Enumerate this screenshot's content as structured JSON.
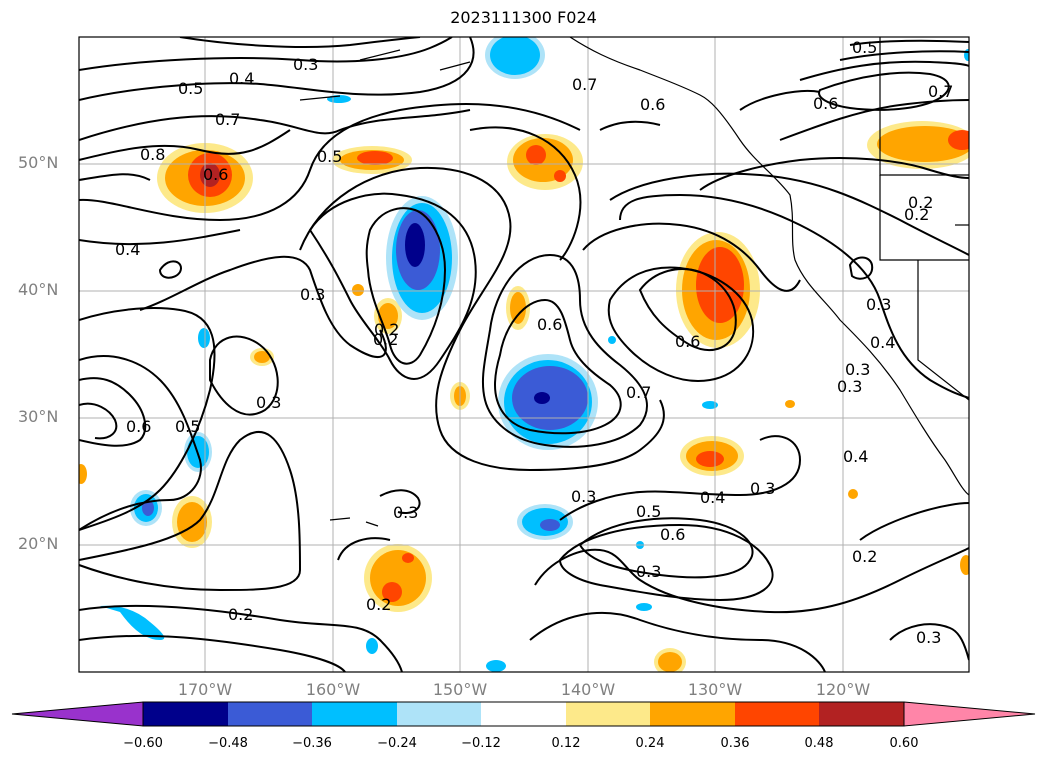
{
  "title": "2023111300 F024",
  "map": {
    "lat_labels": [
      "50°N",
      "40°N",
      "30°N",
      "20°N"
    ],
    "lon_labels": [
      "170°W",
      "160°W",
      "150°W",
      "140°W",
      "130°W",
      "120°W"
    ],
    "contour_labels": [
      "0.3",
      "0.4",
      "0.5",
      "0.7",
      "0.8",
      "0.6",
      "0.5",
      "0.5",
      "0.7",
      "0.6",
      "0.6",
      "0.7",
      "0.4",
      "0.3",
      "0.2",
      "0.2",
      "0.3",
      "0.6",
      "0.5",
      "0.6",
      "0.7",
      "0.3",
      "0.3",
      "0.3",
      "0.5",
      "0.4",
      "0.3",
      "0.6",
      "0.3",
      "0.2",
      "0.2",
      "0.3",
      "0.3",
      "0.4",
      "0.4",
      "0.2",
      "0.2",
      "0.3",
      "0.6",
      "0.2"
    ],
    "colors": {
      "strong_neg": "#00008b",
      "med_neg": "#3b5bd6",
      "neg": "#00bfff",
      "light_neg": "#aee3f8",
      "light_pos": "#fde98a",
      "pos": "#ffa500",
      "med_pos": "#ff4500",
      "strong_pos": "#b22222"
    }
  },
  "colorbar": {
    "ticks": [
      "−0.60",
      "−0.48",
      "−0.36",
      "−0.24",
      "−0.12",
      "0.12",
      "0.24",
      "0.36",
      "0.48",
      "0.60"
    ],
    "colors": [
      "#9932cc",
      "#00008b",
      "#3b5bd6",
      "#00bfff",
      "#aee3f8",
      "#ffffff",
      "#fde98a",
      "#ffa500",
      "#ff4500",
      "#b22222",
      "#ff85a8"
    ]
  }
}
